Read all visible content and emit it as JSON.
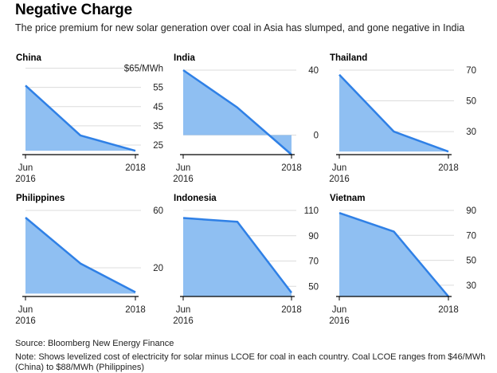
{
  "title": "Negative Charge",
  "subtitle": "The price premium for new solar generation over coal in Asia has slumped, and gone negative in India",
  "source": "Source: Bloomberg New Energy Finance",
  "note": "Note: Shows levelized cost of electricity for solar minus LCOE for coal in each country. Coal LCOE ranges from $46/MWh (China) to $88/MWh (Philippines)",
  "colors": {
    "fill": "#8fbff2",
    "line": "#2f80e6",
    "axis": "#000000",
    "grid": "#dcdcdc"
  },
  "chart_data": [
    {
      "type": "area",
      "title": "China",
      "x_tick_labels": [
        "Jun\n2016",
        "2018"
      ],
      "x": [
        0,
        0.5,
        1
      ],
      "values": [
        56,
        30,
        22
      ],
      "baseline": 22,
      "ylim": [
        20,
        64
      ],
      "y_ticks": [
        25,
        35,
        45,
        55,
        65
      ],
      "y_tick_labels": [
        "25",
        "35",
        "45",
        "55",
        "$65/MWh"
      ]
    },
    {
      "type": "area",
      "title": "India",
      "x_tick_labels": [
        "Jun\n2016",
        "2018"
      ],
      "x": [
        0,
        0.5,
        1
      ],
      "values": [
        40,
        17,
        -12
      ],
      "baseline": 0,
      "ylim": [
        -12,
        40
      ],
      "y_ticks": [
        0,
        40
      ],
      "y_tick_labels": [
        "0",
        "40"
      ]
    },
    {
      "type": "area",
      "title": "Thailand",
      "x_tick_labels": [
        "Jun\n2016",
        "2018"
      ],
      "x": [
        0,
        0.5,
        1
      ],
      "values": [
        67,
        30,
        17
      ],
      "baseline": 17,
      "ylim": [
        15,
        70
      ],
      "y_ticks": [
        30,
        50,
        70
      ],
      "y_tick_labels": [
        "30",
        "50",
        "70"
      ]
    },
    {
      "type": "area",
      "title": "Philippines",
      "x_tick_labels": [
        "Jun\n2016",
        "2018"
      ],
      "x": [
        0,
        0.5,
        1
      ],
      "values": [
        55,
        23,
        3
      ],
      "baseline": 2,
      "ylim": [
        0,
        60
      ],
      "y_ticks": [
        20,
        60
      ],
      "y_tick_labels": [
        "20",
        "60"
      ]
    },
    {
      "type": "area",
      "title": "Indonesia",
      "x_tick_labels": [
        "Jun\n2016",
        "2018"
      ],
      "x": [
        0,
        0.5,
        1
      ],
      "values": [
        104,
        101,
        45
      ],
      "baseline": 42,
      "ylim": [
        42,
        110
      ],
      "y_ticks": [
        50,
        70,
        90,
        110
      ],
      "y_tick_labels": [
        "50",
        "70",
        "90",
        "110"
      ]
    },
    {
      "type": "area",
      "title": "Vietnam",
      "x_tick_labels": [
        "Jun\n2016",
        "2018"
      ],
      "x": [
        0,
        0.5,
        1
      ],
      "values": [
        88,
        73,
        21
      ],
      "baseline": 21,
      "ylim": [
        21,
        90
      ],
      "y_ticks": [
        30,
        50,
        70,
        90
      ],
      "y_tick_labels": [
        "30",
        "50",
        "70",
        "90"
      ]
    }
  ]
}
